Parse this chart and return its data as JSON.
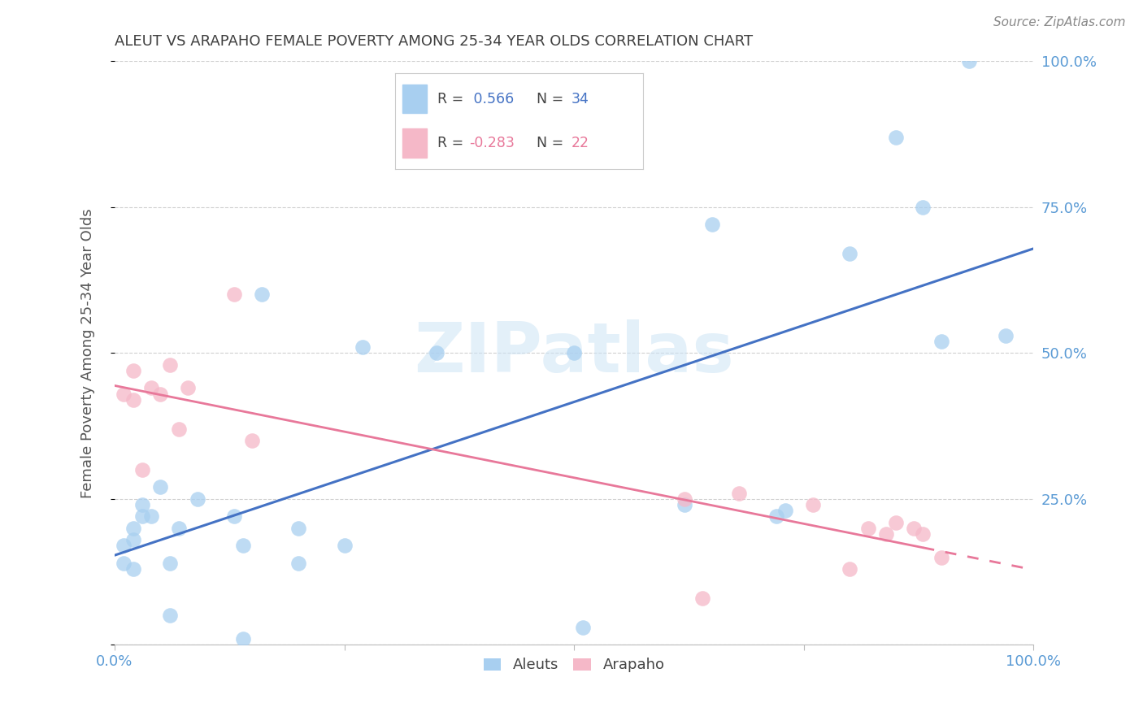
{
  "title": "ALEUT VS ARAPAHO FEMALE POVERTY AMONG 25-34 YEAR OLDS CORRELATION CHART",
  "source": "Source: ZipAtlas.com",
  "ylabel": "Female Poverty Among 25-34 Year Olds",
  "xlim": [
    0,
    1.0
  ],
  "ylim": [
    0,
    1.0
  ],
  "aleuts_x": [
    0.01,
    0.01,
    0.02,
    0.02,
    0.02,
    0.03,
    0.03,
    0.04,
    0.05,
    0.06,
    0.06,
    0.07,
    0.09,
    0.13,
    0.14,
    0.14,
    0.16,
    0.2,
    0.2,
    0.25,
    0.27,
    0.35,
    0.5,
    0.51,
    0.62,
    0.65,
    0.72,
    0.73,
    0.8,
    0.85,
    0.88,
    0.9,
    0.93,
    0.97
  ],
  "aleuts_y": [
    0.14,
    0.17,
    0.13,
    0.18,
    0.2,
    0.22,
    0.24,
    0.22,
    0.27,
    0.05,
    0.14,
    0.2,
    0.25,
    0.22,
    0.01,
    0.17,
    0.6,
    0.2,
    0.14,
    0.17,
    0.51,
    0.5,
    0.5,
    0.03,
    0.24,
    0.72,
    0.22,
    0.23,
    0.67,
    0.87,
    0.75,
    0.52,
    1.0,
    0.53
  ],
  "arapaho_x": [
    0.01,
    0.02,
    0.02,
    0.03,
    0.04,
    0.05,
    0.06,
    0.07,
    0.08,
    0.13,
    0.15,
    0.62,
    0.64,
    0.68,
    0.76,
    0.8,
    0.82,
    0.84,
    0.85,
    0.87,
    0.88,
    0.9
  ],
  "arapaho_y": [
    0.43,
    0.47,
    0.42,
    0.3,
    0.44,
    0.43,
    0.48,
    0.37,
    0.44,
    0.6,
    0.35,
    0.25,
    0.08,
    0.26,
    0.24,
    0.13,
    0.2,
    0.19,
    0.21,
    0.2,
    0.19,
    0.15
  ],
  "aleuts_scatter_color": "#A8CFF0",
  "arapaho_scatter_color": "#F5B8C8",
  "aleuts_line_color": "#4472C4",
  "arapaho_line_color": "#E8789A",
  "legend_r_aleuts_label": "R = ",
  "legend_r_aleuts_value": " 0.566",
  "legend_n_aleuts_label": "N = ",
  "legend_n_aleuts_value": "34",
  "legend_r_arapaho_label": "R = ",
  "legend_r_arapaho_value": "-0.283",
  "legend_n_arapaho_label": "N = ",
  "legend_n_arapaho_value": "22",
  "watermark": "ZIPatlas",
  "background_color": "#ffffff",
  "grid_color": "#d0d0d0",
  "title_color": "#404040",
  "axis_label_color": "#555555",
  "tick_label_color": "#5B9BD5",
  "source_color": "#888888"
}
